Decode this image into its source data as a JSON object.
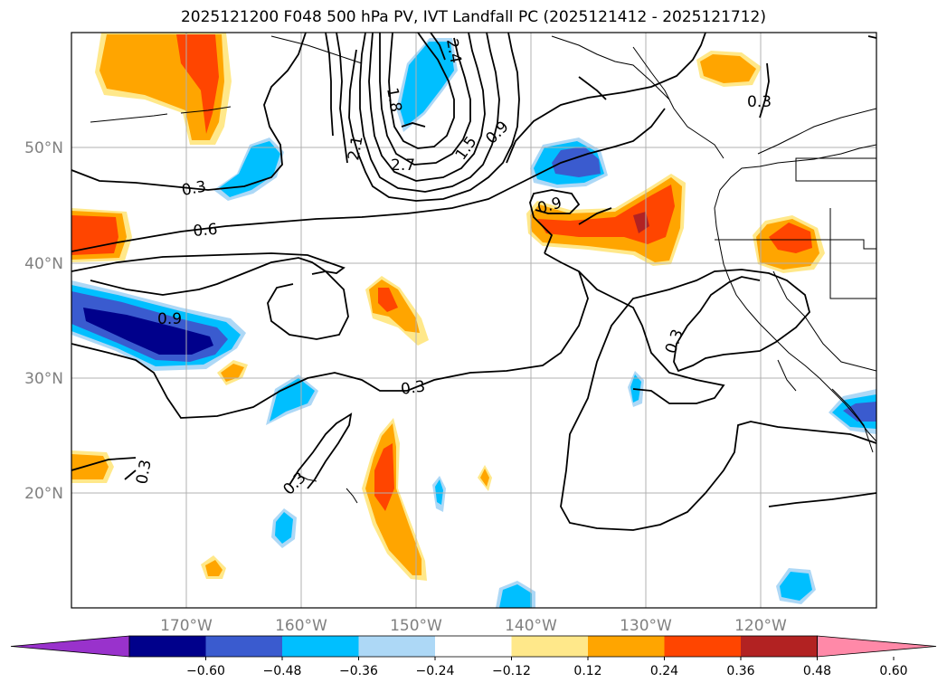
{
  "title": "2025121200 F048 500 hPa PV, IVT Landfall PC (2025121412 - 2025121712)",
  "lat_labels": [
    "50°N",
    "40°N",
    "30°N",
    "20°N"
  ],
  "lon_labels": [
    "170°W",
    "160°W",
    "150°W",
    "140°W",
    "130°W",
    "120°W"
  ],
  "contour_labels": [
    "0.3",
    "0.6",
    "0.9",
    "1.5",
    "0.9",
    "0.9",
    "0.3",
    "0.3",
    "0.3",
    "0.3",
    "2.7",
    "2.1",
    "1.8",
    "2.4",
    "0.3"
  ],
  "colorbar": {
    "colors": [
      "#9932cc",
      "#00008b",
      "#3a5bcf",
      "#00bfff",
      "#add8f6",
      "#ffffff",
      "#ffe88a",
      "#ffa500",
      "#ff4500",
      "#b22222",
      "#ff89a8"
    ],
    "tick_labels": [
      "−0.60",
      "−0.48",
      "−0.36",
      "−0.24",
      "−0.12",
      "0.12",
      "0.24",
      "0.36",
      "0.48",
      "0.60"
    ]
  }
}
